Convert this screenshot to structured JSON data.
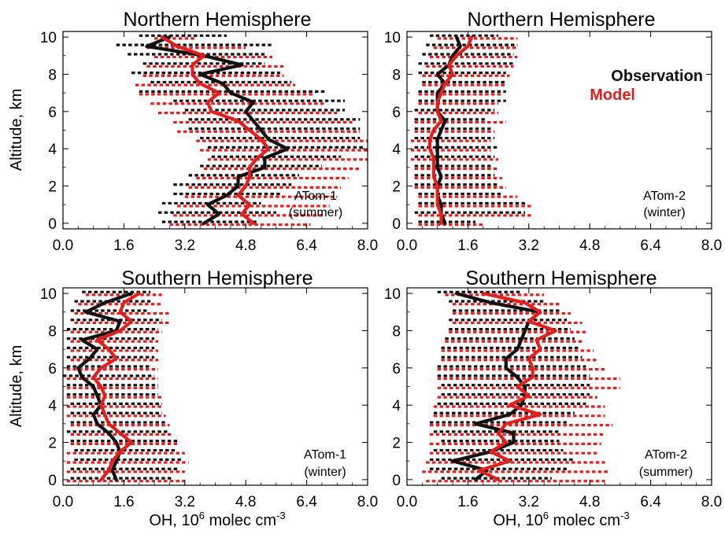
{
  "colors": {
    "observation": "#111111",
    "model": "#e0201f"
  },
  "legend": {
    "observation": "Observation",
    "model": "Model",
    "placement": "top-right of upper-right panel"
  },
  "xlabel": "OH, 10",
  "xlabel_exp": "6",
  "xlabel_unit": " molec cm",
  "xlabel_unit_exp": "-3",
  "ylabel": "Altitude, km",
  "chart_data": [
    {
      "type": "line",
      "title": "Northern Hemisphere",
      "annotation": [
        "ATom-1",
        "(summer)"
      ],
      "xlim": [
        0,
        8
      ],
      "ylim": [
        -0.3,
        10.3
      ],
      "xticks": [
        "0.0",
        "1.6",
        "3.2",
        "4.8",
        "6.4",
        "8.0"
      ],
      "yticks": [
        "0",
        "2",
        "4",
        "6",
        "8",
        "10"
      ],
      "altitude": [
        0,
        0.5,
        1,
        1.5,
        2,
        2.5,
        3,
        3.5,
        4,
        4.5,
        5,
        5.5,
        6,
        6.5,
        7,
        7.5,
        8,
        8.5,
        9,
        9.5,
        10
      ],
      "series": [
        {
          "name": "Observation",
          "values": [
            3.7,
            4.1,
            3.8,
            4.3,
            4.6,
            4.6,
            5.3,
            5.3,
            5.9,
            5.4,
            5.2,
            5.0,
            4.8,
            5.0,
            4.4,
            4.2,
            3.6,
            4.7,
            3.7,
            2.2,
            2.8
          ],
          "min": [
            2.6,
            2.5,
            2.6,
            2.9,
            2.9,
            3.3,
            3.6,
            3.9,
            3.8,
            3.6,
            3.3,
            3.3,
            3.2,
            2.9,
            2.0,
            2.3,
            1.8,
            2.1,
            1.7,
            1.4,
            2.0
          ],
          "max": [
            5.1,
            5.6,
            5.2,
            5.7,
            6.0,
            6.2,
            6.8,
            7.3,
            7.9,
            7.8,
            7.8,
            7.8,
            7.4,
            7.4,
            6.9,
            6.0,
            5.7,
            5.3,
            5.3,
            5.5,
            4.3
          ]
        },
        {
          "name": "Model",
          "values": [
            5.0,
            4.7,
            4.9,
            4.6,
            4.8,
            4.9,
            4.9,
            5.1,
            5.4,
            5.2,
            4.9,
            4.6,
            3.9,
            3.8,
            4.1,
            3.6,
            3.4,
            3.4,
            3.7,
            3.0,
            2.6
          ],
          "min": [
            2.8,
            2.9,
            3.0,
            3.2,
            3.3,
            3.5,
            3.7,
            3.8,
            3.6,
            3.5,
            3.0,
            2.9,
            2.5,
            2.3,
            2.0,
            1.9,
            2.1,
            2.2,
            2.4,
            2.2,
            2.4
          ],
          "max": [
            6.5,
            6.8,
            7.0,
            7.2,
            7.3,
            7.5,
            7.8,
            8.0,
            8.0,
            8.0,
            7.8,
            7.6,
            7.2,
            6.9,
            6.6,
            6.1,
            5.8,
            5.8,
            5.5,
            4.8,
            3.5
          ]
        }
      ]
    },
    {
      "type": "line",
      "title": "Northern Hemisphere",
      "annotation": [
        "ATom-2",
        "(winter)"
      ],
      "xlim": [
        0,
        8
      ],
      "ylim": [
        -0.3,
        10.3
      ],
      "xticks": [
        "0.0",
        "1.6",
        "3.2",
        "4.8",
        "6.4",
        "8.0"
      ],
      "yticks": [
        "0",
        "2",
        "4",
        "6",
        "8",
        "10"
      ],
      "altitude": [
        0,
        0.5,
        1,
        1.5,
        2,
        2.5,
        3,
        3.5,
        4,
        4.5,
        5,
        5.5,
        6,
        6.5,
        7,
        7.5,
        8,
        8.5,
        9,
        9.5,
        10
      ],
      "series": [
        {
          "name": "Observation",
          "values": [
            1.0,
            0.9,
            0.9,
            0.8,
            0.8,
            0.9,
            0.8,
            0.8,
            0.8,
            0.8,
            0.9,
            1.0,
            0.8,
            0.8,
            0.8,
            1.0,
            0.8,
            1.1,
            1.2,
            1.4,
            1.3
          ],
          "min": [
            0.3,
            0.2,
            0.3,
            0.3,
            0.2,
            0.2,
            0.2,
            0.2,
            0.2,
            0.2,
            0.2,
            0.2,
            0.2,
            0.3,
            0.3,
            0.4,
            0.3,
            0.3,
            0.4,
            0.5,
            0.6
          ],
          "max": [
            1.8,
            3.1,
            3.1,
            2.5,
            2.4,
            2.3,
            2.2,
            2.3,
            2.4,
            2.3,
            2.2,
            2.1,
            2.3,
            2.6,
            2.6,
            2.6,
            2.6,
            2.8,
            2.8,
            2.9,
            2.4
          ]
        },
        {
          "name": "Model",
          "values": [
            0.9,
            0.9,
            0.8,
            0.8,
            0.8,
            0.7,
            0.7,
            0.7,
            0.6,
            0.6,
            0.7,
            0.9,
            0.8,
            0.8,
            0.9,
            1.0,
            1.2,
            1.1,
            1.3,
            1.6,
            1.7
          ],
          "min": [
            0.3,
            0.3,
            0.3,
            0.3,
            0.2,
            0.2,
            0.2,
            0.1,
            0.1,
            0.1,
            0.2,
            0.2,
            0.3,
            0.3,
            0.3,
            0.4,
            0.4,
            0.5,
            0.6,
            0.7,
            0.8
          ],
          "max": [
            2.0,
            3.3,
            3.3,
            2.9,
            2.6,
            2.5,
            2.4,
            2.4,
            2.2,
            2.2,
            2.3,
            2.6,
            2.4,
            2.4,
            2.5,
            2.6,
            2.7,
            2.8,
            2.9,
            2.9,
            2.9
          ]
        }
      ]
    },
    {
      "type": "line",
      "title": "Southern Hemisphere",
      "annotation": [
        "ATom-1",
        "(winter)"
      ],
      "xlim": [
        0,
        8
      ],
      "ylim": [
        -0.3,
        10.3
      ],
      "xticks": [
        "0.0",
        "1.6",
        "3.2",
        "4.8",
        "6.4",
        "8.0"
      ],
      "yticks": [
        "0",
        "2",
        "4",
        "6",
        "8",
        "10"
      ],
      "altitude": [
        0,
        0.5,
        1,
        1.5,
        2,
        2.5,
        3,
        3.5,
        4,
        4.5,
        5,
        5.5,
        6,
        6.5,
        7,
        7.5,
        8,
        8.5,
        9,
        9.5,
        10
      ],
      "series": [
        {
          "name": "Observation",
          "values": [
            1.4,
            1.3,
            1.4,
            1.5,
            1.4,
            1.2,
            0.9,
            0.8,
            1.0,
            0.9,
            0.8,
            0.5,
            0.4,
            0.7,
            0.9,
            0.5,
            1.4,
            1.5,
            0.6,
            1.1,
            1.8
          ],
          "min": [
            0.2,
            0.2,
            0.3,
            0.3,
            0.2,
            0.1,
            0.2,
            0.2,
            0.2,
            0.1,
            0.1,
            0.0,
            0.1,
            0.1,
            0.1,
            0.1,
            0.1,
            0.2,
            0.2,
            0.3,
            0.5
          ],
          "max": [
            2.9,
            3.0,
            3.1,
            3.0,
            3.0,
            2.8,
            2.7,
            2.6,
            2.6,
            2.5,
            2.5,
            2.4,
            2.3,
            2.4,
            2.4,
            2.4,
            2.5,
            2.6,
            2.2,
            2.3,
            2.3
          ]
        },
        {
          "name": "Model",
          "values": [
            1.0,
            1.2,
            1.3,
            1.5,
            1.8,
            1.5,
            1.2,
            1.1,
            1.0,
            1.1,
            1.0,
            0.8,
            1.0,
            1.4,
            1.2,
            0.9,
            1.5,
            1.8,
            1.5,
            1.6,
            2.0
          ],
          "min": [
            0.1,
            0.1,
            0.1,
            0.1,
            0.2,
            0.2,
            0.2,
            0.1,
            0.1,
            0.1,
            0.1,
            0.1,
            0.1,
            0.2,
            0.2,
            0.2,
            0.2,
            0.3,
            0.3,
            0.4,
            0.6
          ],
          "max": [
            3.2,
            3.2,
            3.3,
            3.2,
            3.0,
            2.9,
            2.8,
            2.7,
            2.6,
            2.6,
            2.5,
            2.5,
            2.5,
            2.5,
            2.5,
            2.5,
            2.6,
            2.8,
            2.8,
            2.6,
            2.6
          ]
        }
      ]
    },
    {
      "type": "line",
      "title": "Southern Hemisphere",
      "annotation": [
        "ATom-2",
        "(summer)"
      ],
      "xlim": [
        0,
        8
      ],
      "ylim": [
        -0.3,
        10.3
      ],
      "xticks": [
        "0.0",
        "1.6",
        "3.2",
        "4.8",
        "6.4",
        "8.0"
      ],
      "yticks": [
        "0",
        "2",
        "4",
        "6",
        "8",
        "10"
      ],
      "altitude": [
        0,
        0.5,
        1,
        1.5,
        2,
        2.5,
        3,
        3.5,
        4,
        4.5,
        5,
        5.5,
        6,
        6.5,
        7,
        7.5,
        8,
        8.5,
        9,
        9.5,
        10
      ],
      "series": [
        {
          "name": "Observation",
          "values": [
            1.8,
            2.1,
            1.2,
            2.2,
            2.8,
            2.8,
            1.8,
            2.7,
            3.0,
            3.1,
            3.1,
            2.9,
            2.6,
            2.6,
            2.9,
            3.0,
            3.1,
            3.2,
            3.5,
            2.2,
            1.3
          ],
          "min": [
            0.9,
            0.6,
            0.6,
            0.7,
            0.9,
            0.7,
            0.6,
            0.7,
            0.8,
            0.9,
            0.9,
            0.8,
            0.8,
            0.9,
            0.9,
            1.0,
            1.1,
            1.1,
            1.2,
            1.1,
            0.8
          ],
          "max": [
            3.8,
            4.2,
            4.4,
            4.1,
            4.0,
            4.0,
            4.2,
            4.4,
            4.7,
            4.8,
            4.8,
            4.8,
            4.7,
            4.6,
            4.5,
            4.4,
            4.3,
            4.2,
            4.0,
            3.6,
            3.0
          ]
        },
        {
          "name": "Model",
          "values": [
            2.4,
            1.9,
            2.7,
            2.2,
            2.6,
            2.4,
            2.6,
            3.5,
            2.7,
            3.2,
            2.9,
            3.3,
            3.3,
            3.2,
            3.5,
            3.4,
            3.9,
            3.2,
            3.5,
            3.1,
            2.0
          ],
          "min": [
            0.5,
            0.4,
            0.5,
            0.6,
            0.6,
            0.6,
            0.6,
            0.7,
            0.7,
            0.8,
            0.8,
            0.8,
            0.8,
            0.9,
            0.9,
            1.0,
            1.1,
            1.2,
            1.2,
            1.2,
            1.0
          ],
          "max": [
            5.2,
            5.3,
            5.2,
            5.0,
            5.1,
            5.2,
            5.4,
            5.2,
            5.2,
            5.0,
            5.6,
            5.6,
            5.2,
            5.0,
            4.9,
            4.6,
            4.7,
            4.6,
            4.3,
            4.0,
            3.6
          ]
        }
      ]
    }
  ]
}
